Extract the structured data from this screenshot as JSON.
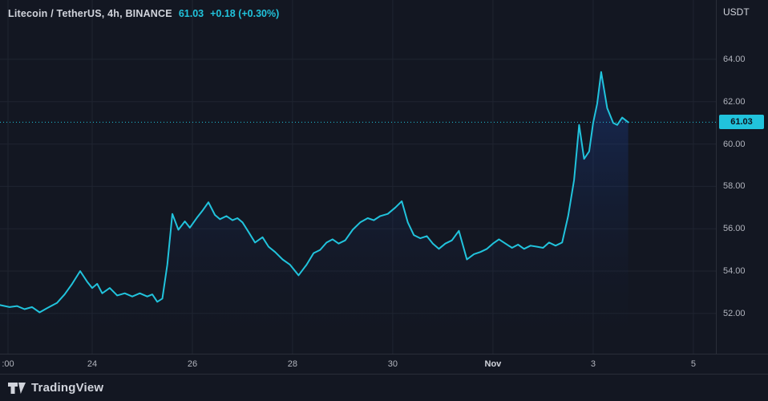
{
  "legend": {
    "symbol": "Litecoin / TetherUS, 4h, BINANCE",
    "price": "61.03",
    "change": "+0.18 (+0.30%)"
  },
  "price_axis": {
    "currency": "USDT"
  },
  "footer": {
    "brand": "TradingView"
  },
  "theme": {
    "background": "#131722",
    "line": "#21c3dc",
    "area_top": "rgba(33,90,220,0.30)",
    "area_bottom": "rgba(19,23,34,0)",
    "grid": "#1f2430",
    "separator": "#2a2e39",
    "axis_text": "#b2b5be",
    "axis_text_bright": "#d1d4dc",
    "badge_text": "#0e131d"
  },
  "chart_data": {
    "type": "area",
    "title": "Litecoin / TetherUS, 4h, BINANCE",
    "interval": "4h",
    "exchange": "BINANCE",
    "currency": "USDT",
    "last_price": "61.03",
    "change_abs": "+0.18",
    "change_pct": "+0.30%",
    "current_price": 61.03,
    "x_note": "x = continuous day index: 24 = Oct 24, 32 = Nov 1, 36 = Nov 5",
    "x_domain": [
      22.16,
      36.45
    ],
    "y_domain": [
      50.1,
      66.8
    ],
    "x_ticks": [
      {
        "label": ":00",
        "x": 22.32
      },
      {
        "label": "24",
        "x": 24
      },
      {
        "label": "26",
        "x": 26
      },
      {
        "label": "28",
        "x": 28
      },
      {
        "label": "30",
        "x": 30
      },
      {
        "label": "Nov",
        "x": 32,
        "emph": true
      },
      {
        "label": "3",
        "x": 34
      },
      {
        "label": "5",
        "x": 36
      }
    ],
    "y_ticks": [
      {
        "label": "64.00",
        "value": 64
      },
      {
        "label": "62.00",
        "value": 62
      },
      {
        "label": "60.00",
        "value": 60
      },
      {
        "label": "58.00",
        "value": 58
      },
      {
        "label": "56.00",
        "value": 56
      },
      {
        "label": "54.00",
        "value": 54
      },
      {
        "label": "52.00",
        "value": 52
      }
    ],
    "points": [
      [
        22.16,
        52.4
      ],
      [
        22.35,
        52.3
      ],
      [
        22.5,
        52.35
      ],
      [
        22.65,
        52.2
      ],
      [
        22.8,
        52.3
      ],
      [
        22.95,
        52.05
      ],
      [
        23.1,
        52.25
      ],
      [
        23.3,
        52.5
      ],
      [
        23.45,
        52.9
      ],
      [
        23.6,
        53.4
      ],
      [
        23.76,
        54.0
      ],
      [
        23.9,
        53.5
      ],
      [
        24.0,
        53.2
      ],
      [
        24.1,
        53.4
      ],
      [
        24.2,
        52.95
      ],
      [
        24.35,
        53.2
      ],
      [
        24.5,
        52.85
      ],
      [
        24.65,
        52.95
      ],
      [
        24.8,
        52.8
      ],
      [
        24.95,
        52.95
      ],
      [
        25.1,
        52.8
      ],
      [
        25.2,
        52.9
      ],
      [
        25.3,
        52.55
      ],
      [
        25.4,
        52.7
      ],
      [
        25.5,
        54.3
      ],
      [
        25.6,
        56.7
      ],
      [
        25.72,
        55.95
      ],
      [
        25.85,
        56.35
      ],
      [
        25.95,
        56.05
      ],
      [
        26.1,
        56.55
      ],
      [
        26.2,
        56.85
      ],
      [
        26.32,
        57.25
      ],
      [
        26.45,
        56.65
      ],
      [
        26.55,
        56.45
      ],
      [
        26.68,
        56.6
      ],
      [
        26.8,
        56.4
      ],
      [
        26.9,
        56.5
      ],
      [
        27.0,
        56.3
      ],
      [
        27.12,
        55.85
      ],
      [
        27.25,
        55.35
      ],
      [
        27.4,
        55.6
      ],
      [
        27.52,
        55.15
      ],
      [
        27.65,
        54.9
      ],
      [
        27.8,
        54.55
      ],
      [
        27.95,
        54.3
      ],
      [
        28.12,
        53.8
      ],
      [
        28.28,
        54.3
      ],
      [
        28.42,
        54.85
      ],
      [
        28.55,
        55.0
      ],
      [
        28.68,
        55.35
      ],
      [
        28.8,
        55.5
      ],
      [
        28.92,
        55.3
      ],
      [
        29.05,
        55.45
      ],
      [
        29.2,
        55.95
      ],
      [
        29.35,
        56.3
      ],
      [
        29.5,
        56.5
      ],
      [
        29.62,
        56.4
      ],
      [
        29.75,
        56.6
      ],
      [
        29.9,
        56.7
      ],
      [
        30.05,
        57.0
      ],
      [
        30.18,
        57.3
      ],
      [
        30.3,
        56.3
      ],
      [
        30.42,
        55.7
      ],
      [
        30.55,
        55.55
      ],
      [
        30.68,
        55.65
      ],
      [
        30.8,
        55.3
      ],
      [
        30.92,
        55.05
      ],
      [
        31.05,
        55.3
      ],
      [
        31.18,
        55.45
      ],
      [
        31.32,
        55.9
      ],
      [
        31.48,
        54.55
      ],
      [
        31.62,
        54.8
      ],
      [
        31.75,
        54.9
      ],
      [
        31.88,
        55.05
      ],
      [
        32.0,
        55.3
      ],
      [
        32.12,
        55.5
      ],
      [
        32.25,
        55.3
      ],
      [
        32.38,
        55.1
      ],
      [
        32.5,
        55.25
      ],
      [
        32.62,
        55.05
      ],
      [
        32.75,
        55.2
      ],
      [
        32.88,
        55.15
      ],
      [
        33.0,
        55.1
      ],
      [
        33.12,
        55.35
      ],
      [
        33.25,
        55.2
      ],
      [
        33.38,
        55.35
      ],
      [
        33.5,
        56.6
      ],
      [
        33.62,
        58.3
      ],
      [
        33.72,
        60.9
      ],
      [
        33.82,
        59.3
      ],
      [
        33.92,
        59.65
      ],
      [
        34.0,
        61.0
      ],
      [
        34.08,
        61.9
      ],
      [
        34.16,
        63.4
      ],
      [
        34.28,
        61.7
      ],
      [
        34.4,
        61.0
      ],
      [
        34.48,
        60.9
      ],
      [
        34.58,
        61.25
      ],
      [
        34.7,
        61.03
      ]
    ]
  }
}
